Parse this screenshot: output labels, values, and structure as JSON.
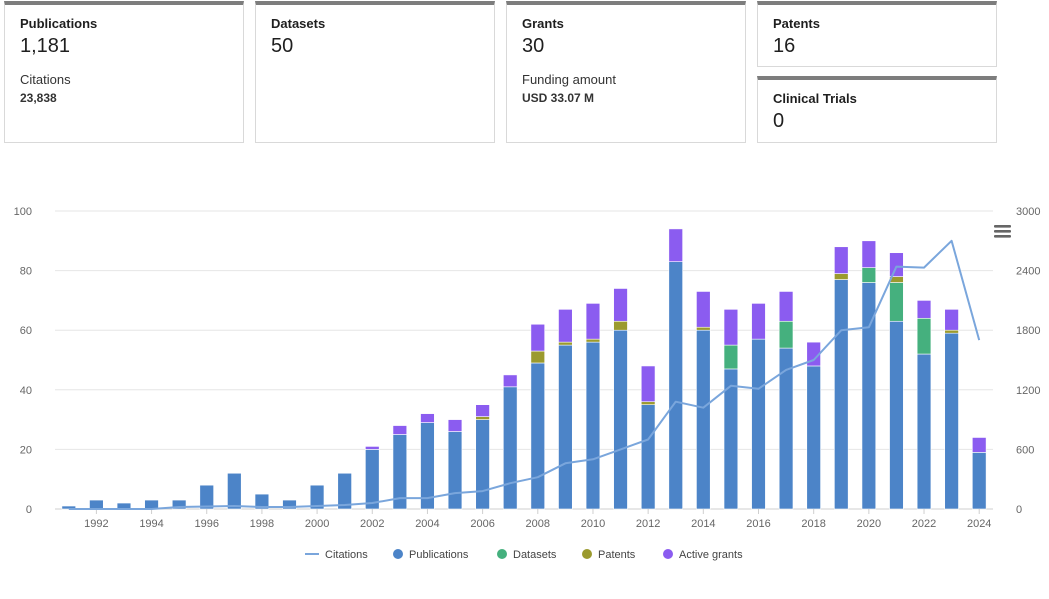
{
  "cards": {
    "publications": {
      "label": "Publications",
      "value": "1,181",
      "sub_label": "Citations",
      "sub_value": "23,838"
    },
    "datasets": {
      "label": "Datasets",
      "value": "50"
    },
    "grants": {
      "label": "Grants",
      "value": "30",
      "sub_label": "Funding amount",
      "sub_value": "USD 33.07 M"
    },
    "patents": {
      "label": "Patents",
      "value": "16"
    },
    "clinical_trials": {
      "label": "Clinical Trials",
      "value": "0"
    }
  },
  "menu_icon": "hamburger-menu-icon",
  "chart_data": {
    "type": "bar",
    "stacked": true,
    "title": "",
    "xlabel": "",
    "ylabel": "",
    "x": [
      1991,
      1992,
      1993,
      1994,
      1995,
      1996,
      1997,
      1998,
      1999,
      2000,
      2001,
      2002,
      2003,
      2004,
      2005,
      2006,
      2007,
      2008,
      2009,
      2010,
      2011,
      2012,
      2013,
      2014,
      2015,
      2016,
      2017,
      2018,
      2019,
      2020,
      2021,
      2022,
      2023,
      2024
    ],
    "x_tick_labels": [
      "1992",
      "1994",
      "1996",
      "1998",
      "2000",
      "2002",
      "2004",
      "2006",
      "2008",
      "2010",
      "2012",
      "2014",
      "2016",
      "2018",
      "2020",
      "2022",
      "2024"
    ],
    "ylim": [
      0,
      100
    ],
    "y_ticks": [
      "0",
      "20",
      "40",
      "60",
      "80",
      "100"
    ],
    "y2lim": [
      0,
      3000
    ],
    "y2_ticks": [
      "0",
      "600",
      "1200",
      "1800",
      "2400",
      "3000"
    ],
    "series": [
      {
        "name": "Publications",
        "type": "bar",
        "color": "#4c84c8",
        "values": [
          1,
          3,
          2,
          3,
          3,
          8,
          12,
          5,
          3,
          8,
          12,
          20,
          25,
          29,
          26,
          30,
          41,
          49,
          55,
          56,
          60,
          35,
          83,
          60,
          47,
          57,
          54,
          48,
          77,
          76,
          63,
          52,
          59,
          19
        ]
      },
      {
        "name": "Datasets",
        "type": "bar",
        "color": "#45b07e",
        "values": [
          0,
          0,
          0,
          0,
          0,
          0,
          0,
          0,
          0,
          0,
          0,
          0,
          0,
          0,
          0,
          0,
          0,
          0,
          0,
          0,
          0,
          0,
          0,
          0,
          8,
          0,
          9,
          0,
          0,
          5,
          13,
          12,
          0,
          0
        ]
      },
      {
        "name": "Patents",
        "type": "bar",
        "color": "#9b9a2e",
        "values": [
          0,
          0,
          0,
          0,
          0,
          0,
          0,
          0,
          0,
          0,
          0,
          0,
          0,
          0,
          0,
          1,
          0,
          4,
          1,
          1,
          3,
          1,
          0,
          1,
          0,
          0,
          0,
          0,
          2,
          0,
          2,
          0,
          1,
          0
        ]
      },
      {
        "name": "Active grants",
        "type": "bar",
        "color": "#8b5cf0",
        "values": [
          0,
          0,
          0,
          0,
          0,
          0,
          0,
          0,
          0,
          0,
          0,
          1,
          3,
          3,
          4,
          4,
          4,
          9,
          11,
          12,
          11,
          12,
          11,
          12,
          12,
          12,
          10,
          8,
          9,
          9,
          8,
          6,
          7,
          5
        ]
      },
      {
        "name": "Citations",
        "type": "line",
        "axis": "right",
        "color": "#7aa6dc",
        "values": [
          0,
          0,
          0,
          0,
          20,
          25,
          30,
          20,
          20,
          30,
          40,
          60,
          110,
          110,
          160,
          180,
          260,
          320,
          460,
          500,
          600,
          700,
          1080,
          1020,
          1240,
          1210,
          1400,
          1500,
          1800,
          1830,
          2440,
          2430,
          2700,
          1700
        ]
      }
    ],
    "legend": [
      "Citations",
      "Publications",
      "Datasets",
      "Patents",
      "Active grants"
    ],
    "legend_position": "bottom-center"
  }
}
